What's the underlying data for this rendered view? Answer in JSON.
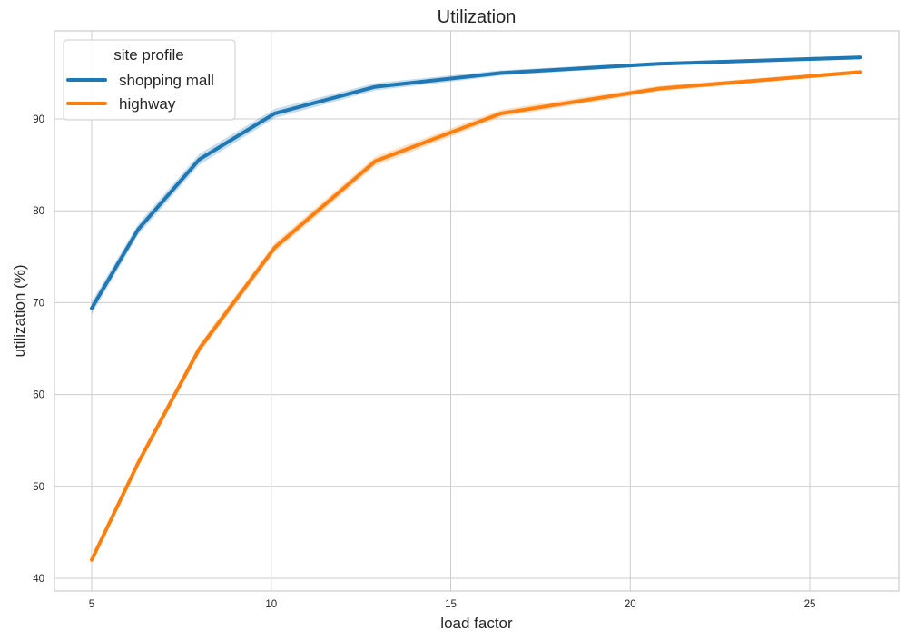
{
  "chart_data": {
    "type": "line",
    "title": "Utilization",
    "xlabel": "load factor",
    "ylabel": "utilization (%)",
    "xlim": [
      3.9,
      27.5
    ],
    "ylim": [
      38.7,
      100
    ],
    "xticks": [
      5,
      10,
      15,
      20,
      25
    ],
    "yticks": [
      40,
      50,
      60,
      70,
      80,
      90
    ],
    "grid": true,
    "legend": {
      "title": "site profile",
      "position": "upper left",
      "entries": [
        "shopping mall",
        "highway"
      ]
    },
    "series": [
      {
        "name": "shopping mall",
        "color": "#1f77b4",
        "x": [
          5.0,
          6.3,
          8.0,
          10.1,
          12.9,
          16.4,
          20.8,
          26.4
        ],
        "y": [
          69.4,
          78.0,
          85.6,
          90.6,
          93.5,
          95.0,
          96.0,
          96.7
        ],
        "ci_halfwidth": [
          0.7,
          0.6,
          0.6,
          0.5,
          0.4,
          0.3,
          0.2,
          0.2
        ]
      },
      {
        "name": "highway",
        "color": "#ff7f0e",
        "x": [
          5.0,
          6.3,
          8.0,
          10.1,
          12.9,
          16.4,
          20.8,
          26.4
        ],
        "y": [
          42.0,
          52.6,
          65.0,
          76.0,
          85.4,
          90.6,
          93.3,
          95.1
        ],
        "ci_halfwidth": [
          0.3,
          0.4,
          0.5,
          0.5,
          0.5,
          0.4,
          0.3,
          0.2
        ]
      }
    ]
  },
  "colors": {
    "grid": "#cccccc",
    "frame": "#cccccc",
    "text": "#262626"
  }
}
